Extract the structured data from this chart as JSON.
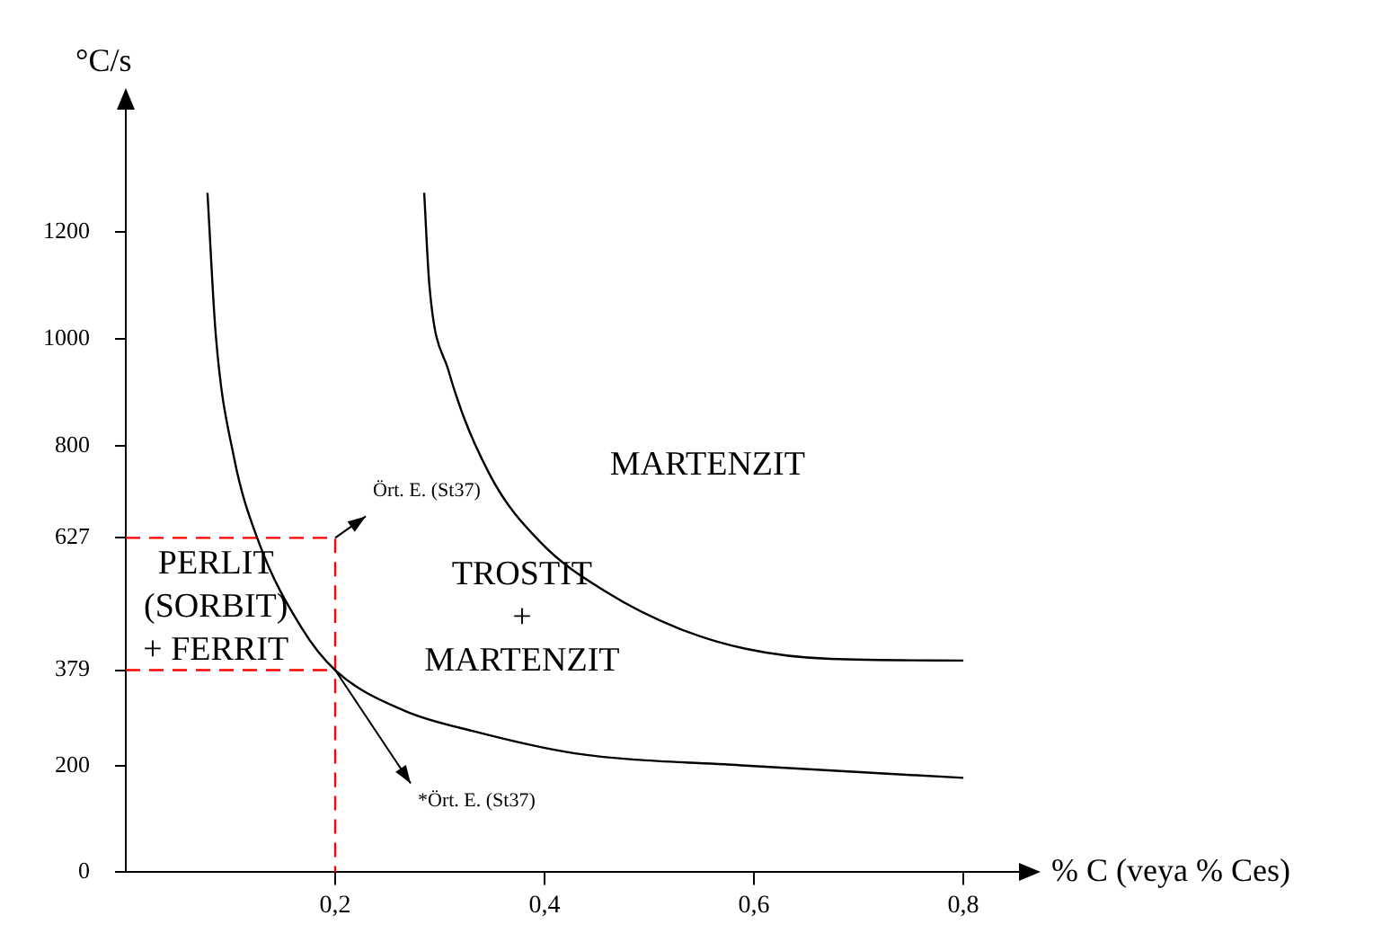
{
  "chart_data": {
    "type": "line",
    "xlabel": "% C (veya % Ces)",
    "ylabel": "°C/s",
    "xlim": [
      0,
      0.86
    ],
    "ylim": [
      0,
      1440
    ],
    "xticks": [
      {
        "value": 0.2,
        "label": "0,2"
      },
      {
        "value": 0.4,
        "label": "0,4"
      },
      {
        "value": 0.6,
        "label": "0,6"
      },
      {
        "value": 0.8,
        "label": "0,8"
      }
    ],
    "yticks": [
      0,
      200,
      379,
      627,
      800,
      1000,
      1200
    ],
    "grid": false,
    "legend": false,
    "marker": "none",
    "series": [
      {
        "color": "#000000",
        "line_style": "solid",
        "x": [
          0.078,
          0.086,
          0.103,
          0.127,
          0.168,
          0.2,
          0.266,
          0.331,
          0.429,
          0.592,
          0.8
        ],
        "values": [
          1274,
          1006,
          781,
          619,
          458,
          379,
          303,
          265,
          223,
          200,
          177
        ]
      },
      {
        "color": "#000000",
        "line_style": "solid",
        "x": [
          0.285,
          0.29,
          0.308,
          0.347,
          0.396,
          0.461,
          0.527,
          0.592,
          0.673,
          0.8
        ],
        "values": [
          1274,
          1100,
          942,
          748,
          619,
          523,
          458,
          419,
          400,
          397
        ]
      },
      {
        "color": "#ff0000",
        "line_style": "dashed",
        "x": [
          0,
          0.2,
          0.2
        ],
        "values": [
          627,
          627,
          0
        ]
      },
      {
        "color": "#ff0000",
        "line_style": "dashed",
        "x": [
          0,
          0.2
        ],
        "values": [
          379,
          379
        ]
      }
    ],
    "annotations": [
      {
        "text": "Ört. E. (St37)",
        "x": 0.2,
        "y": 627
      },
      {
        "text": "*Ört. E. (St37)",
        "x": 0.2,
        "y": 379
      },
      "PERLIT\n(SORBIT)\n+ FERRIT",
      "TROSTIT\n+\nMARTENZIT",
      "MARTENZIT"
    ]
  }
}
